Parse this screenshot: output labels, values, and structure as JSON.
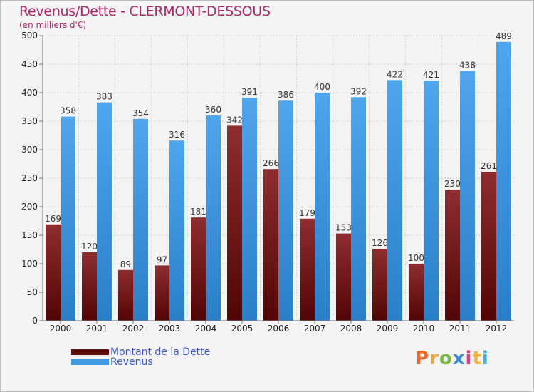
{
  "chart_data": {
    "type": "bar",
    "title": "Revenus/Dette - CLERMONT-DESSOUS",
    "subtitle": "(en milliers d'€)",
    "categories": [
      "2000",
      "2001",
      "2002",
      "2003",
      "2004",
      "2005",
      "2006",
      "2007",
      "2008",
      "2009",
      "2010",
      "2011",
      "2012"
    ],
    "series": [
      {
        "name": "Montant de la Dette",
        "values": [
          169,
          120,
          89,
          97,
          181,
          342,
          266,
          179,
          153,
          126,
          100,
          230,
          261
        ],
        "color": "#7a1b1b"
      },
      {
        "name": "Revenus",
        "values": [
          358,
          383,
          354,
          316,
          360,
          391,
          386,
          400,
          392,
          422,
          421,
          438,
          489
        ],
        "color": "#3f9ae0"
      }
    ],
    "ylim": [
      0,
      500
    ],
    "yticks": [
      0,
      50,
      100,
      150,
      200,
      250,
      300,
      350,
      400,
      450,
      500
    ],
    "grid": true,
    "legend_position": "bottom-left"
  },
  "logo": {
    "letters": [
      "P",
      "r",
      "o",
      "x",
      "i",
      "t",
      "i"
    ],
    "colors": [
      "#e86a2b",
      "#f2a43a",
      "#79b93e",
      "#3b8ad8",
      "#e03c8a",
      "#f0b43a",
      "#36b3d8"
    ]
  }
}
